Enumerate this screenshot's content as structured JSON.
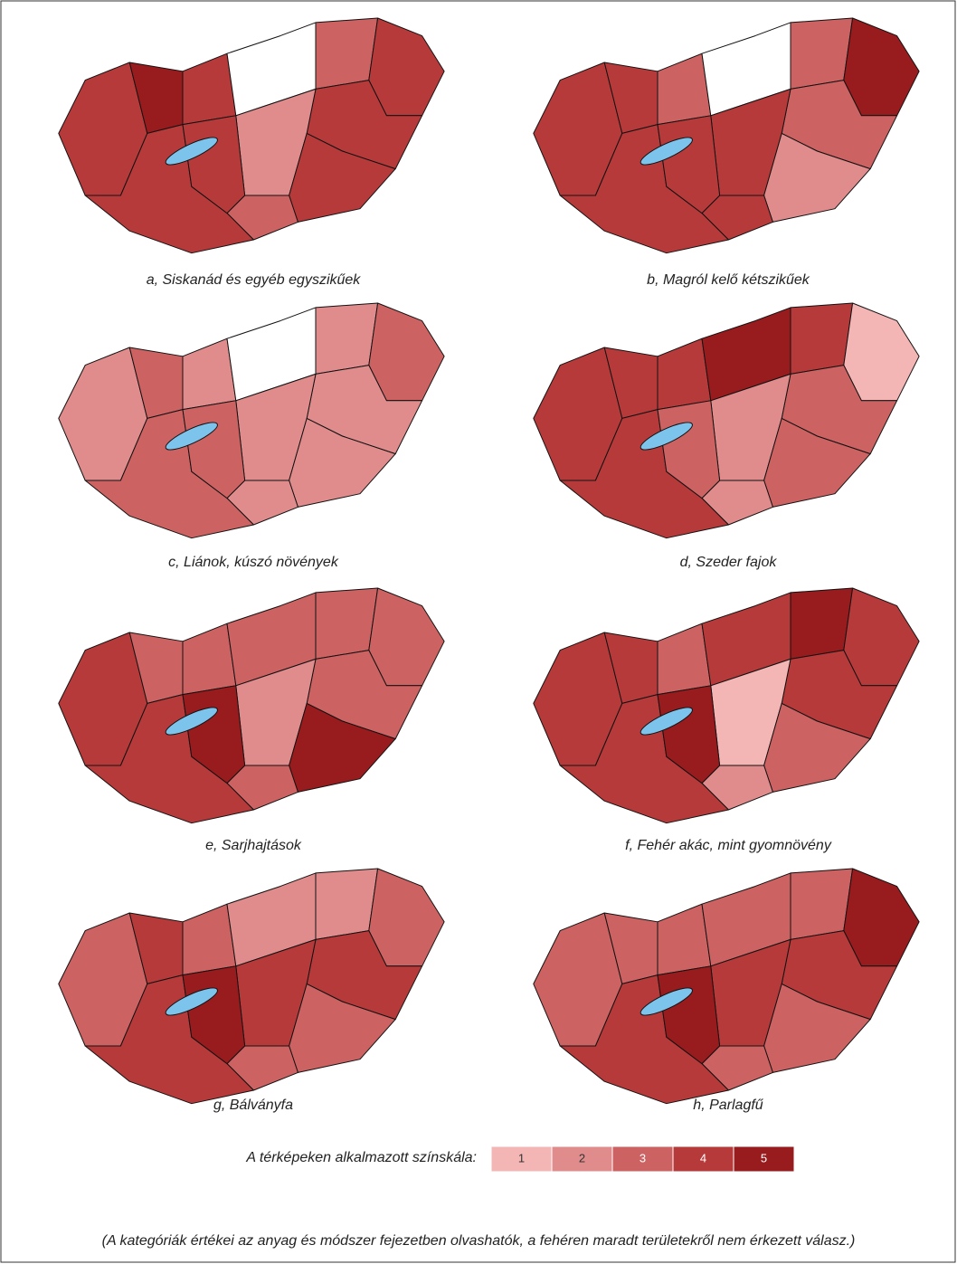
{
  "maps": [
    {
      "caption": "a, Siskanád és egyéb egyszikűek",
      "values": [
        4,
        5,
        4,
        null,
        3,
        4,
        4,
        2,
        4,
        3,
        4,
        4
      ]
    },
    {
      "caption": "b, Magról kelő kétszikűek",
      "values": [
        4,
        4,
        3,
        null,
        3,
        5,
        3,
        4,
        2,
        4,
        4,
        4
      ]
    },
    {
      "caption": "c, Liánok, kúszó növények",
      "values": [
        2,
        3,
        2,
        null,
        2,
        3,
        2,
        2,
        2,
        2,
        3,
        3
      ]
    },
    {
      "caption": "d, Szeder fajok",
      "values": [
        4,
        4,
        4,
        5,
        4,
        1,
        3,
        2,
        3,
        2,
        4,
        3
      ]
    },
    {
      "caption": "e, Sarjhajtások",
      "values": [
        4,
        3,
        3,
        3,
        3,
        3,
        3,
        2,
        5,
        3,
        4,
        5
      ]
    },
    {
      "caption": "f, Fehér akác, mint gyomnövény",
      "values": [
        4,
        4,
        3,
        4,
        5,
        4,
        4,
        1,
        3,
        2,
        4,
        5
      ]
    },
    {
      "caption": "g, Bálványfa",
      "values": [
        3,
        4,
        3,
        2,
        2,
        3,
        4,
        4,
        3,
        3,
        4,
        5
      ]
    },
    {
      "caption": "h, Parlagfű",
      "values": [
        3,
        3,
        3,
        3,
        3,
        5,
        4,
        4,
        3,
        3,
        4,
        5
      ]
    }
  ],
  "legend": {
    "title": "A térképeken alkalmazott színskála:",
    "items": [
      1,
      2,
      3,
      4,
      5
    ],
    "colors": [
      "#f4b5b5",
      "#e08c8c",
      "#cd6262",
      "#b73a3b",
      "#981b1e"
    ]
  },
  "footnote": "(A kategóriák értékei az anyag és módszer fejezetben olvashatók, a fehéren maradt területekről nem érkezett válasz.)"
}
